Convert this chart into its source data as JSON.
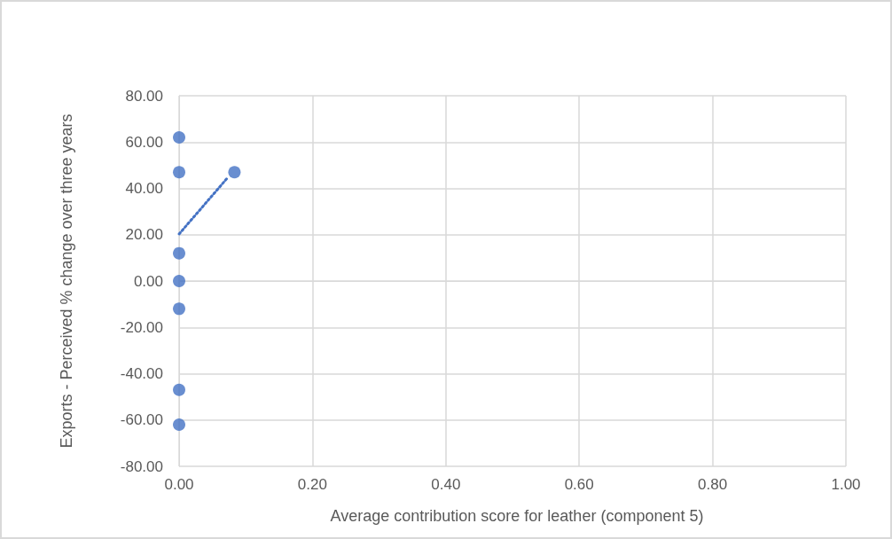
{
  "chart_data": {
    "type": "scatter",
    "xlabel": "Average contribution score for leather (component 5)",
    "ylabel": "Exports - Perceived % change over three years",
    "series": [
      {
        "color": "#4472c4",
        "marker": "circle",
        "x": [
          0,
          0,
          0,
          0,
          0,
          0,
          0,
          0.083
        ],
        "values": [
          62,
          47,
          12,
          0,
          -12,
          -47,
          -62,
          47
        ]
      },
      {
        "type": "line",
        "color": "#4472c4",
        "marker": "none",
        "line_style": "dotted",
        "x": [
          0,
          0.073
        ],
        "values": [
          20.3,
          44.7
        ]
      }
    ],
    "xlim": [
      0,
      1
    ],
    "xticks": [
      {
        "value": 0,
        "label": "0.00"
      },
      {
        "value": 0.2,
        "label": "0.20"
      },
      {
        "value": 0.4,
        "label": "0.40"
      },
      {
        "value": 0.6,
        "label": "0.60"
      },
      {
        "value": 0.8,
        "label": "0.80"
      },
      {
        "value": 1,
        "label": "1.00"
      }
    ],
    "ylim": [
      -80,
      80
    ],
    "yticks": [
      {
        "value": -80,
        "label": "-80.00"
      },
      {
        "value": -60,
        "label": "-60.00"
      },
      {
        "value": -40,
        "label": "-40.00"
      },
      {
        "value": -20,
        "label": "-20.00"
      },
      {
        "value": 0,
        "label": "0.00"
      },
      {
        "value": 20,
        "label": "20.00"
      },
      {
        "value": 40,
        "label": "40.00"
      },
      {
        "value": 60,
        "label": "60.00"
      },
      {
        "value": 80,
        "label": "80.00"
      }
    ],
    "grid": true
  }
}
